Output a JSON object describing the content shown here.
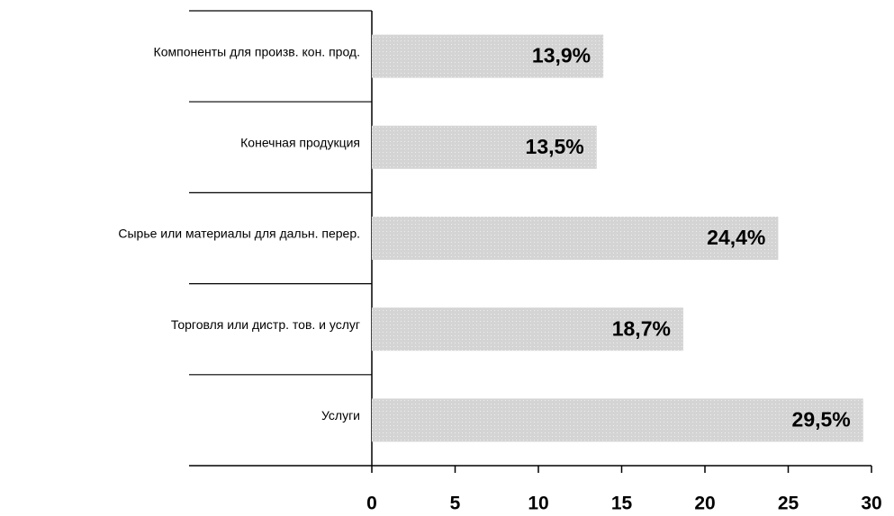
{
  "chart_data": {
    "type": "barh",
    "categories": [
      "Компоненты для произв. кон. прод.",
      "Конечная продукция",
      "Сырье или материалы для дальн. перер.",
      "Торговля или дистр. тов. и услуг",
      "Услуги"
    ],
    "values": [
      13.9,
      13.5,
      24.4,
      18.7,
      29.5
    ],
    "value_labels": [
      "13,9%",
      "13,5%",
      "24,4%",
      "18,7%",
      "29,5%"
    ],
    "color": "#d4d4d4",
    "xlim": [
      0,
      30
    ],
    "xticks": [
      0,
      5,
      10,
      15,
      20,
      25,
      30
    ]
  }
}
